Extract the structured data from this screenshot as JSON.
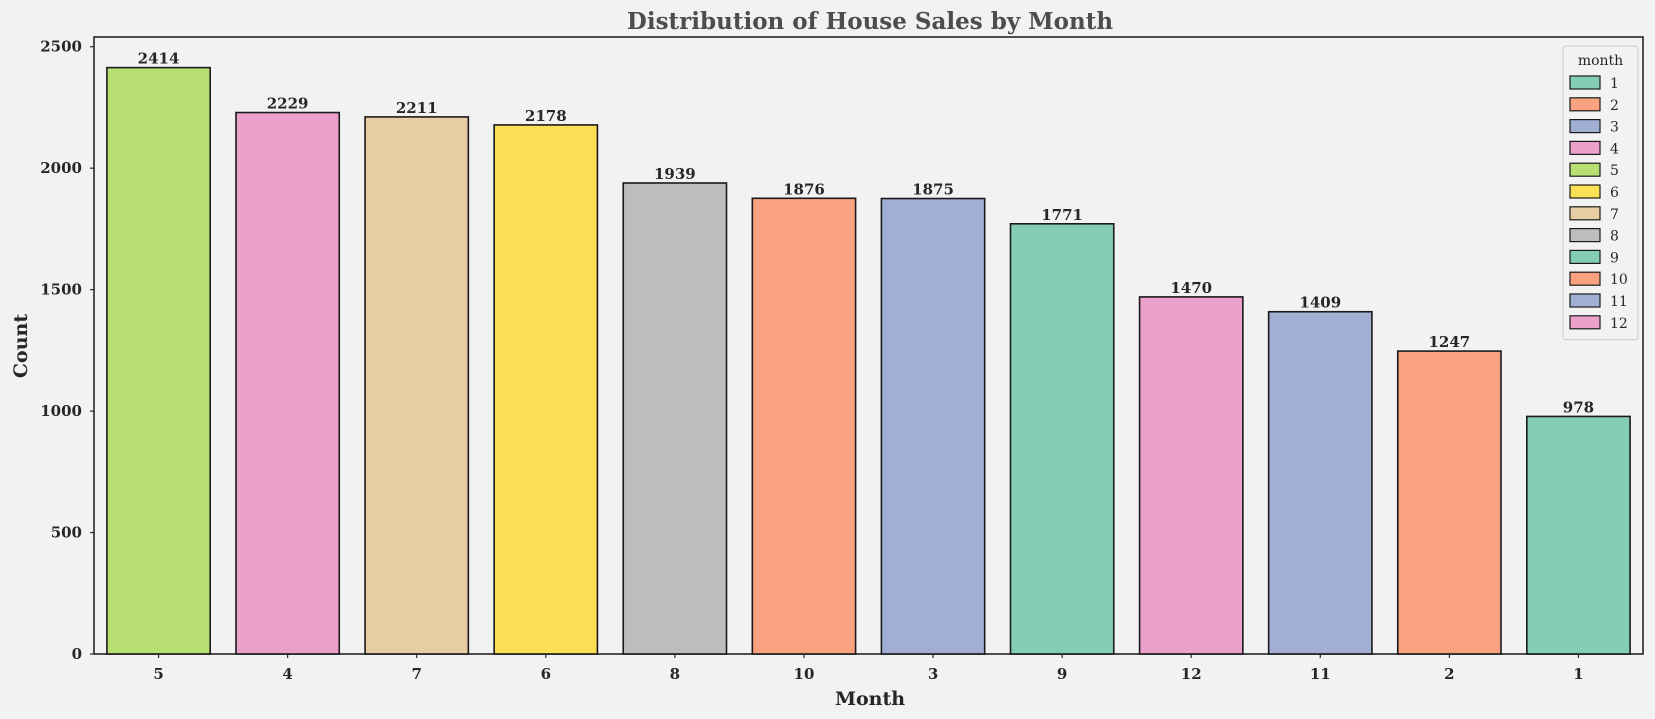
{
  "chart_data": {
    "type": "bar",
    "title": "Distribution of House Sales by Month",
    "xlabel": "Month",
    "ylabel": "Count",
    "categories": [
      "5",
      "4",
      "7",
      "6",
      "8",
      "10",
      "3",
      "9",
      "12",
      "11",
      "2",
      "1"
    ],
    "values": [
      2414,
      2229,
      2211,
      2178,
      1939,
      1876,
      1875,
      1771,
      1470,
      1409,
      1247,
      978
    ],
    "bar_colors": [
      "#b8df72",
      "#eaa0cb",
      "#e6cda4",
      "#fbdf55",
      "#bdbdbd",
      "#f9a27f",
      "#a0afd3",
      "#84cdb6",
      "#eaa0cb",
      "#a0afd3",
      "#f9a27f",
      "#84cdb6"
    ],
    "ylim": [
      0,
      2540
    ],
    "yticks": [
      0,
      500,
      1000,
      1500,
      2000,
      2500
    ],
    "grid": false,
    "legend": {
      "title": "month",
      "position": "top-right",
      "entries": [
        {
          "label": "1",
          "color": "#84cdb6"
        },
        {
          "label": "2",
          "color": "#f9a27f"
        },
        {
          "label": "3",
          "color": "#a0afd3"
        },
        {
          "label": "4",
          "color": "#eaa0cb"
        },
        {
          "label": "5",
          "color": "#b8df72"
        },
        {
          "label": "6",
          "color": "#fbdf55"
        },
        {
          "label": "7",
          "color": "#e6cda4"
        },
        {
          "label": "8",
          "color": "#bdbdbd"
        },
        {
          "label": "9",
          "color": "#84cdb6"
        },
        {
          "label": "10",
          "color": "#f9a27f"
        },
        {
          "label": "11",
          "color": "#a0afd3"
        },
        {
          "label": "12",
          "color": "#eaa0cb"
        }
      ]
    }
  }
}
